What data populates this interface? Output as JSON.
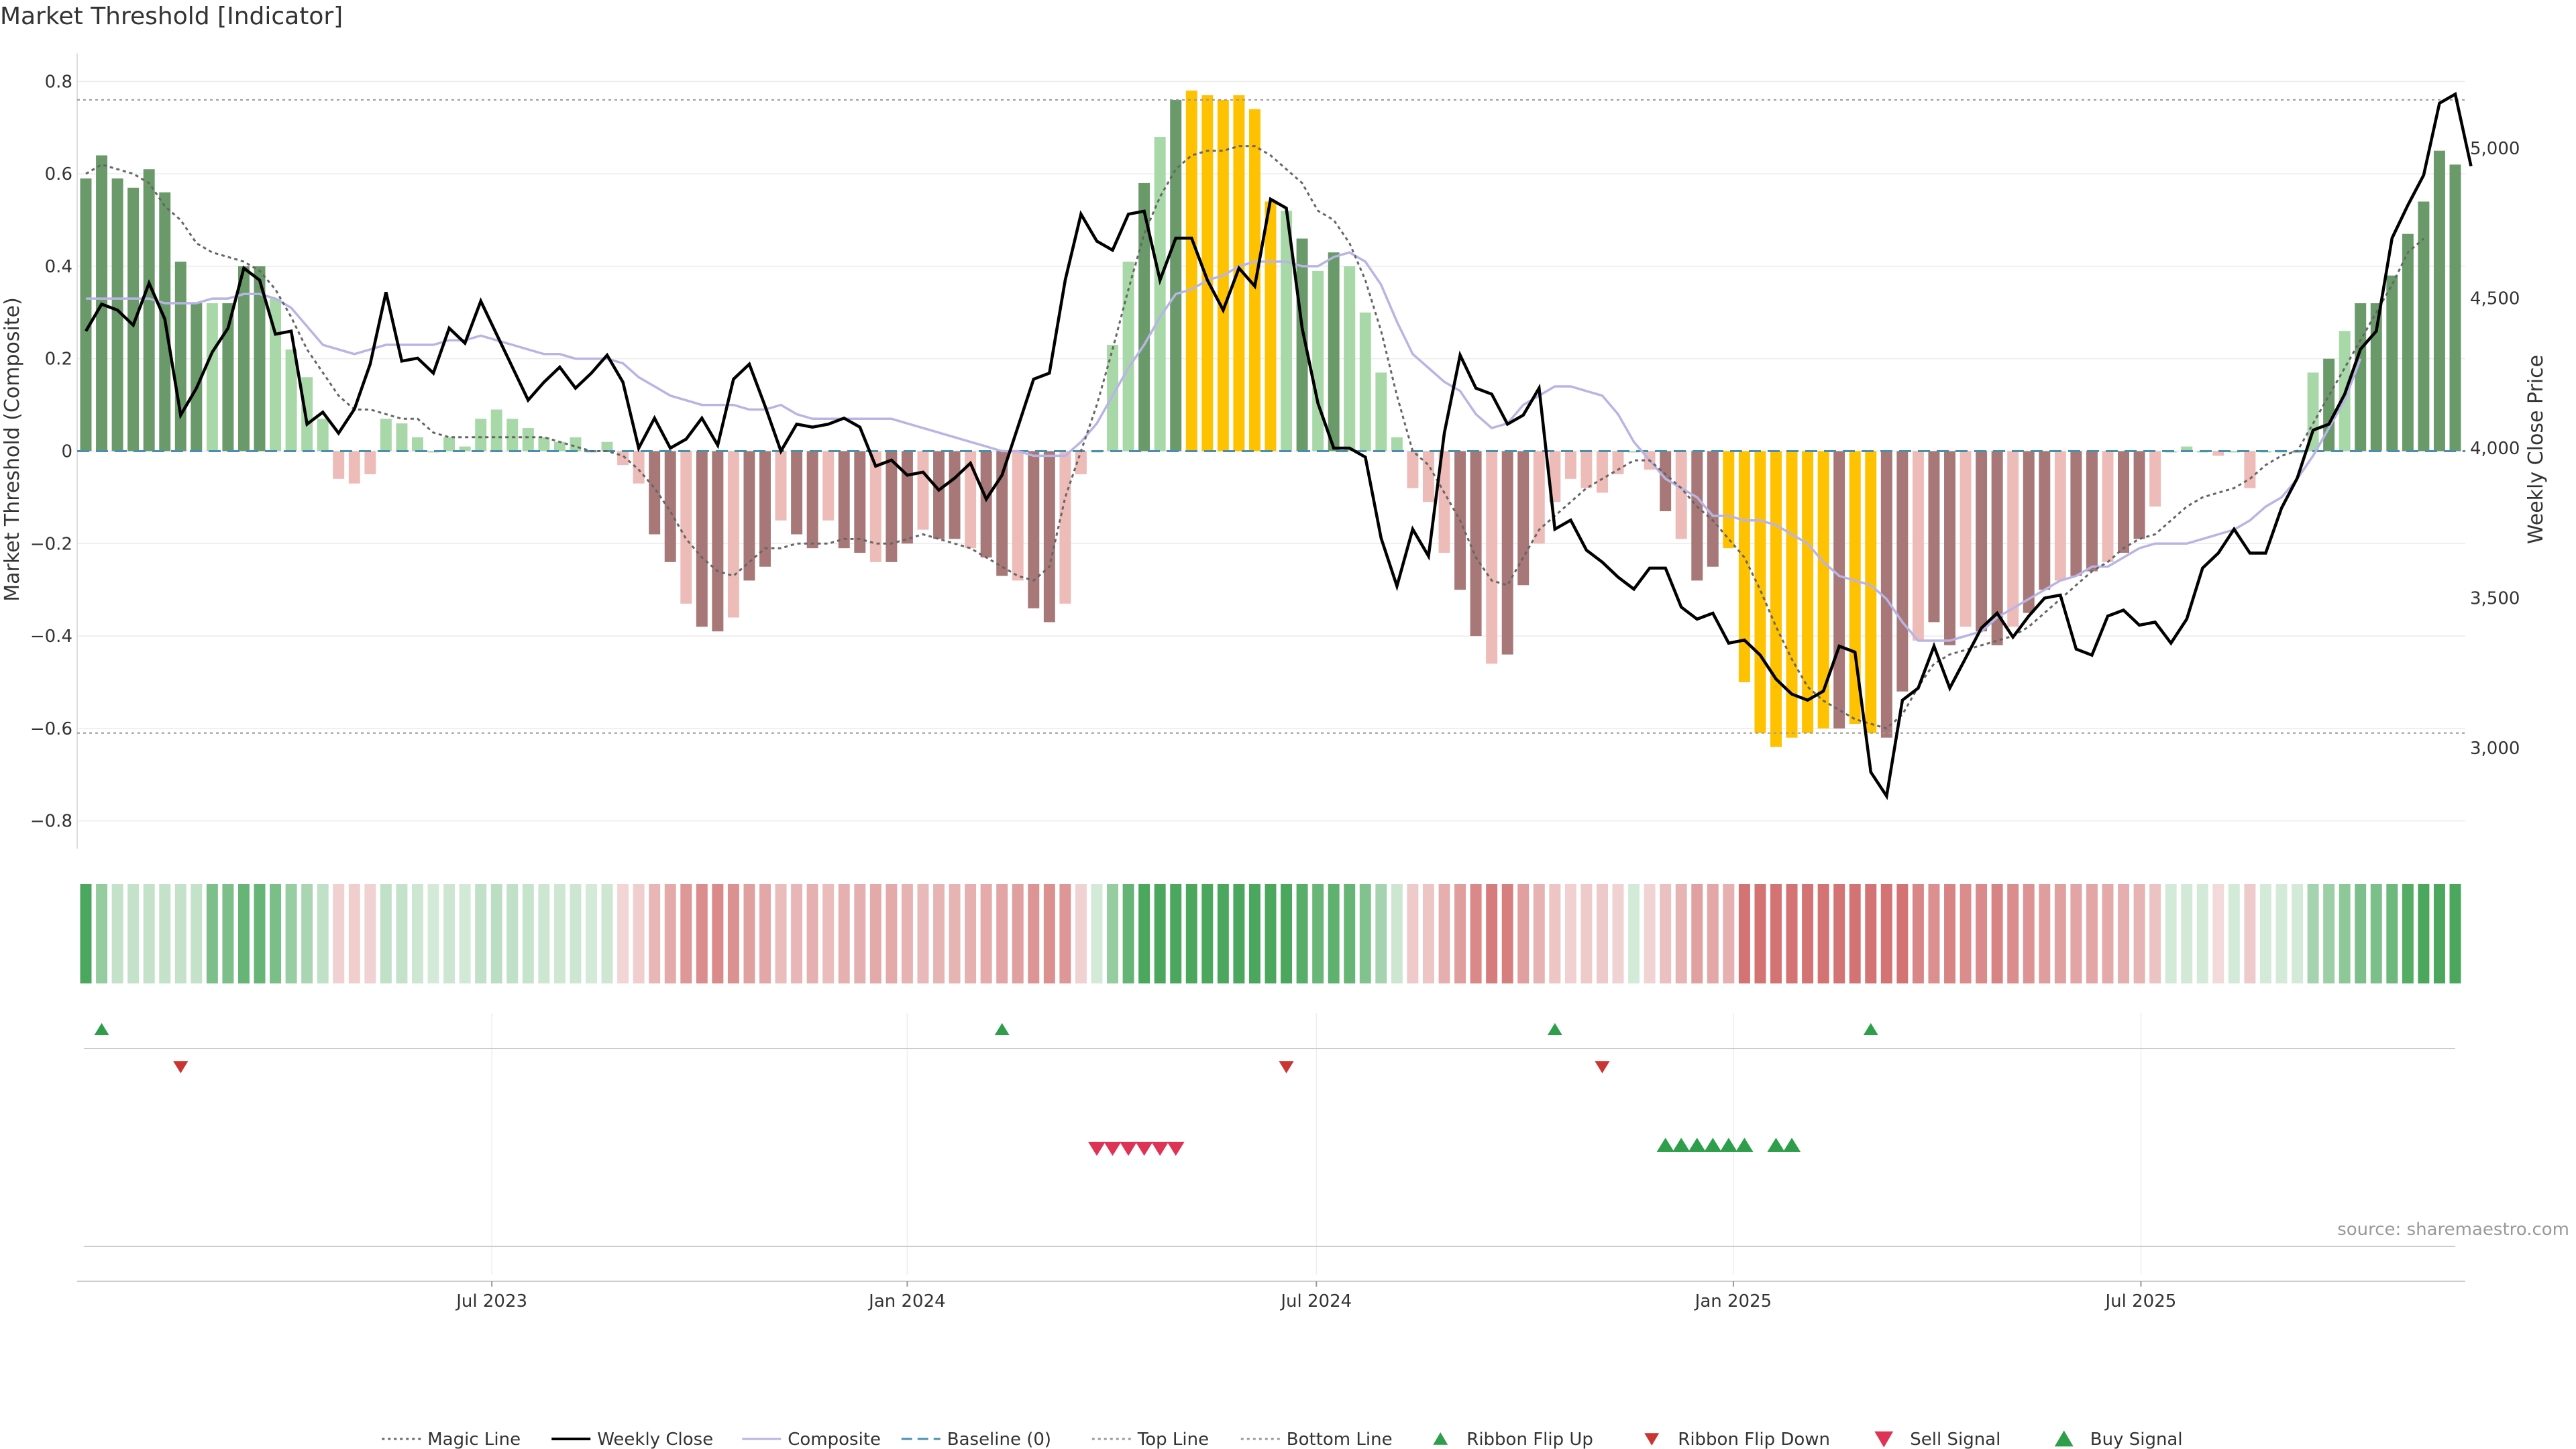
{
  "title": "Market Threshold [Indicator]",
  "source": "source: sharemaestro.com",
  "chart_data": {
    "type": "bar",
    "title": "Market Threshold [Indicator]",
    "ylabel_left": "Market Threshold (Composite)",
    "ylabel_right": "Weekly Close Price",
    "ylim_left": [
      -0.86,
      0.86
    ],
    "ylim_right": [
      2665,
      5315
    ],
    "yticks_left": [
      "0.8",
      "0.6",
      "0.4",
      "0.2",
      "0",
      "−0.2",
      "−0.4",
      "−0.6",
      "−0.8"
    ],
    "yticks_left_values": [
      0.8,
      0.6,
      0.4,
      0.2,
      0,
      -0.2,
      -0.4,
      -0.6,
      -0.8
    ],
    "yticks_right": [
      "5,000",
      "4,500",
      "4,000",
      "3,500",
      "3,000"
    ],
    "yticks_right_values": [
      5000,
      4500,
      4000,
      3500,
      3000
    ],
    "top_line": 0.76,
    "bottom_line": -0.61,
    "baseline": 0,
    "x_start": "2023-01-06",
    "x_ticks": [
      {
        "label": "Jul 2023",
        "week": 25.7
      },
      {
        "label": "Jan 2024",
        "week": 52.0
      },
      {
        "label": "Jul 2024",
        "week": 77.9
      },
      {
        "label": "Jan 2025",
        "week": 104.3
      },
      {
        "label": "Jul 2025",
        "week": 130.1
      }
    ],
    "colors": {
      "strong_pos": "#6a9a6a",
      "weak_pos": "#a8d8a8",
      "strong_neg": "#a87878",
      "weak_neg": "#edbcb8",
      "extreme": "#ffc200",
      "close": "#000000",
      "composite": "#b8b4e4",
      "magic": "#666666",
      "baseline": "#4a8fb0",
      "ribbon_up": "#2e9e4a",
      "ribbon_down": "#cc3333",
      "sell": "#dd3355",
      "buy": "#2e9e4a"
    },
    "series": [
      {
        "name": "Composite Bars",
        "values": [
          0.59,
          0.64,
          0.59,
          0.57,
          0.61,
          0.56,
          0.41,
          0.32,
          0.32,
          0.32,
          0.4,
          0.4,
          0.33,
          0.22,
          0.16,
          0.07,
          -0.06,
          -0.07,
          -0.05,
          0.07,
          0.06,
          0.03,
          0.0,
          0.03,
          0.01,
          0.07,
          0.09,
          0.07,
          0.05,
          0.03,
          0.02,
          0.03,
          0.0,
          0.02,
          -0.03,
          -0.07,
          -0.18,
          -0.24,
          -0.33,
          -0.38,
          -0.39,
          -0.36,
          -0.28,
          -0.25,
          -0.15,
          -0.18,
          -0.21,
          -0.15,
          -0.21,
          -0.22,
          -0.24,
          -0.24,
          -0.2,
          -0.17,
          -0.19,
          -0.19,
          -0.21,
          -0.23,
          -0.27,
          -0.28,
          -0.34,
          -0.37,
          -0.33,
          -0.05,
          0.0,
          0.23,
          0.41,
          0.58,
          0.68,
          0.76,
          0.78,
          0.77,
          0.76,
          0.77,
          0.74,
          0.54,
          0.52,
          0.46,
          0.39,
          0.43,
          0.4,
          0.3,
          0.17,
          0.03,
          -0.08,
          -0.11,
          -0.22,
          -0.3,
          -0.4,
          -0.46,
          -0.44,
          -0.29,
          -0.2,
          -0.11,
          -0.06,
          -0.08,
          -0.09,
          -0.05,
          0.0,
          -0.04,
          -0.13,
          -0.19,
          -0.28,
          -0.25,
          -0.21,
          -0.5,
          -0.61,
          -0.64,
          -0.62,
          -0.61,
          -0.6,
          -0.6,
          -0.59,
          -0.61,
          -0.62,
          -0.52,
          -0.41,
          -0.37,
          -0.42,
          -0.38,
          -0.39,
          -0.42,
          -0.38,
          -0.35,
          -0.3,
          -0.28,
          -0.27,
          -0.26,
          -0.24,
          -0.22,
          -0.19,
          -0.12,
          0.0,
          0.01,
          0.0,
          -0.01,
          0.0,
          -0.08,
          0.0,
          0.0,
          0.0,
          0.17,
          0.2,
          0.26,
          0.32,
          0.32,
          0.38,
          0.47,
          0.54,
          0.65,
          0.62
        ]
      },
      {
        "name": "Weekly Close",
        "values": [
          4390,
          4480,
          4460,
          4410,
          4550,
          4430,
          4110,
          4200,
          4320,
          4400,
          4600,
          4560,
          4380,
          4390,
          4080,
          4120,
          4050,
          4130,
          4280,
          4520,
          4290,
          4300,
          4250,
          4400,
          4350,
          4490,
          4380,
          4270,
          4160,
          4220,
          4270,
          4200,
          4250,
          4310,
          4220,
          4000,
          4100,
          4000,
          4030,
          4100,
          4010,
          4230,
          4280,
          4140,
          3990,
          4080,
          4070,
          4080,
          4100,
          4070,
          3940,
          3960,
          3910,
          3920,
          3860,
          3900,
          3950,
          3830,
          3910,
          4070,
          4230,
          4250,
          4560,
          4780,
          4690,
          4660,
          4780,
          4790,
          4560,
          4700,
          4700,
          4560,
          4460,
          4600,
          4540,
          4830,
          4800,
          4400,
          4150,
          4000,
          4000,
          3970,
          3700,
          3540,
          3730,
          3640,
          4050,
          4310,
          4200,
          4180,
          4080,
          4110,
          4200,
          3730,
          3760,
          3660,
          3620,
          3570,
          3530,
          3600,
          3600,
          3470,
          3430,
          3450,
          3350,
          3360,
          3310,
          3230,
          3180,
          3160,
          3190,
          3340,
          3320,
          2920,
          2840,
          3160,
          3200,
          3340,
          3200,
          3300,
          3400,
          3450,
          3370,
          3440,
          3500,
          3510,
          3330,
          3310,
          3440,
          3460,
          3410,
          3420,
          3350,
          3430,
          3600,
          3650,
          3730,
          3650,
          3650,
          3800,
          3900,
          4060,
          4080,
          4180,
          4330,
          4390,
          4700,
          4810,
          4910,
          5150,
          5180,
          4940
        ]
      },
      {
        "name": "Composite",
        "values": [
          0.33,
          0.33,
          0.33,
          0.33,
          0.33,
          0.32,
          0.32,
          0.32,
          0.33,
          0.33,
          0.34,
          0.34,
          0.33,
          0.31,
          0.27,
          0.23,
          0.22,
          0.21,
          0.22,
          0.23,
          0.23,
          0.23,
          0.23,
          0.24,
          0.24,
          0.25,
          0.24,
          0.23,
          0.22,
          0.21,
          0.21,
          0.2,
          0.2,
          0.2,
          0.19,
          0.16,
          0.14,
          0.12,
          0.11,
          0.1,
          0.1,
          0.1,
          0.09,
          0.09,
          0.1,
          0.08,
          0.07,
          0.07,
          0.07,
          0.07,
          0.07,
          0.07,
          0.06,
          0.05,
          0.04,
          0.03,
          0.02,
          0.01,
          0.0,
          0.0,
          -0.01,
          -0.01,
          -0.01,
          0.02,
          0.06,
          0.12,
          0.18,
          0.23,
          0.29,
          0.34,
          0.35,
          0.37,
          0.38,
          0.4,
          0.41,
          0.41,
          0.41,
          0.4,
          0.4,
          0.42,
          0.43,
          0.41,
          0.36,
          0.28,
          0.21,
          0.18,
          0.15,
          0.13,
          0.08,
          0.05,
          0.06,
          0.1,
          0.12,
          0.14,
          0.14,
          0.13,
          0.12,
          0.08,
          0.02,
          -0.02,
          -0.06,
          -0.08,
          -0.1,
          -0.14,
          -0.14,
          -0.15,
          -0.15,
          -0.16,
          -0.18,
          -0.2,
          -0.24,
          -0.27,
          -0.28,
          -0.29,
          -0.32,
          -0.37,
          -0.41,
          -0.41,
          -0.41,
          -0.4,
          -0.39,
          -0.36,
          -0.34,
          -0.32,
          -0.3,
          -0.28,
          -0.27,
          -0.25,
          -0.25,
          -0.23,
          -0.21,
          -0.2,
          -0.2,
          -0.2,
          -0.19,
          -0.18,
          -0.17,
          -0.15,
          -0.12,
          -0.1,
          -0.06,
          -0.01,
          0.05,
          0.11,
          0.2
        ]
      },
      {
        "name": "Magic Line",
        "values": [
          0.6,
          0.62,
          0.61,
          0.6,
          0.58,
          0.53,
          0.5,
          0.45,
          0.43,
          0.42,
          0.41,
          0.39,
          0.35,
          0.29,
          0.22,
          0.17,
          0.12,
          0.09,
          0.09,
          0.08,
          0.07,
          0.07,
          0.04,
          0.03,
          0.03,
          0.03,
          0.03,
          0.03,
          0.03,
          0.03,
          0.02,
          0.01,
          0.0,
          0.0,
          -0.01,
          -0.04,
          -0.08,
          -0.13,
          -0.19,
          -0.23,
          -0.26,
          -0.27,
          -0.24,
          -0.21,
          -0.21,
          -0.2,
          -0.2,
          -0.2,
          -0.19,
          -0.19,
          -0.2,
          -0.2,
          -0.19,
          -0.18,
          -0.19,
          -0.2,
          -0.21,
          -0.23,
          -0.25,
          -0.27,
          -0.28,
          -0.25,
          -0.1,
          0.0,
          0.1,
          0.22,
          0.35,
          0.47,
          0.55,
          0.61,
          0.64,
          0.65,
          0.65,
          0.66,
          0.66,
          0.64,
          0.61,
          0.58,
          0.52,
          0.5,
          0.45,
          0.37,
          0.26,
          0.12,
          0.0,
          -0.03,
          -0.09,
          -0.15,
          -0.23,
          -0.28,
          -0.29,
          -0.23,
          -0.17,
          -0.14,
          -0.11,
          -0.08,
          -0.06,
          -0.04,
          -0.02,
          -0.02,
          -0.05,
          -0.08,
          -0.12,
          -0.15,
          -0.19,
          -0.23,
          -0.3,
          -0.38,
          -0.45,
          -0.51,
          -0.54,
          -0.56,
          -0.58,
          -0.59,
          -0.6,
          -0.57,
          -0.51,
          -0.46,
          -0.44,
          -0.43,
          -0.42,
          -0.41,
          -0.4,
          -0.38,
          -0.35,
          -0.32,
          -0.29,
          -0.26,
          -0.24,
          -0.21,
          -0.19,
          -0.18,
          -0.15,
          -0.12,
          -0.1,
          -0.09,
          -0.08,
          -0.06,
          -0.03,
          -0.01,
          0.0,
          0.06,
          0.12,
          0.18,
          0.24,
          0.3,
          0.36,
          0.43,
          0.46
        ]
      }
    ],
    "ribbon_flip_up_weeks": [
      1,
      58,
      93,
      113
    ],
    "ribbon_flip_down_weeks": [
      6,
      76,
      96
    ],
    "sell_signal_weeks": [
      64,
      65,
      66,
      67,
      68,
      69
    ],
    "buy_signal_weeks": [
      100,
      101,
      102,
      103,
      104,
      105,
      107,
      108
    ],
    "legend": [
      {
        "label": "Magic Line",
        "kind": "dotted",
        "color": "#666666"
      },
      {
        "label": "Weekly Close",
        "kind": "solid",
        "color": "#000000"
      },
      {
        "label": "Composite",
        "kind": "solid",
        "color": "#b8b4e4"
      },
      {
        "label": "Baseline (0)",
        "kind": "dashed",
        "color": "#4a8fb0"
      },
      {
        "label": "Top Line",
        "kind": "dotted",
        "color": "#999999"
      },
      {
        "label": "Bottom Line",
        "kind": "dotted",
        "color": "#999999"
      },
      {
        "label": "Ribbon Flip Up",
        "kind": "tri-up",
        "color": "#2e9e4a"
      },
      {
        "label": "Ribbon Flip Down",
        "kind": "tri-down",
        "color": "#cc3333"
      },
      {
        "label": "Sell Signal",
        "kind": "tri-down-big",
        "color": "#dd3355"
      },
      {
        "label": "Buy Signal",
        "kind": "tri-up-big",
        "color": "#2e9e4a"
      }
    ]
  }
}
